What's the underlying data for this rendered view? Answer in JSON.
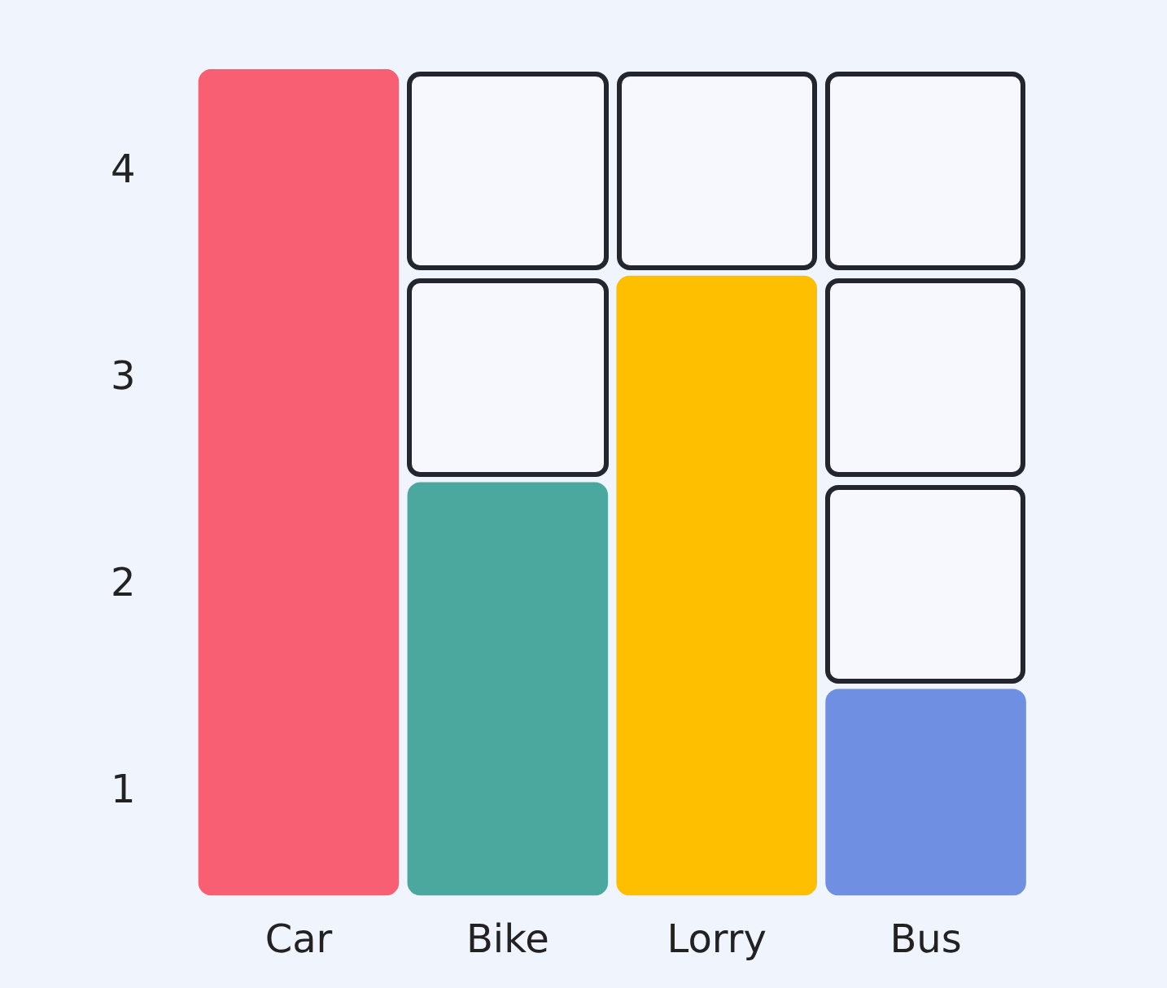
{
  "chart_data": {
    "type": "bar",
    "categories": [
      "Car",
      "Bike",
      "Lorry",
      "Bus"
    ],
    "values": [
      4,
      2,
      3,
      1
    ],
    "colors": [
      "#f95f72",
      "#4aa89f",
      "#fdbf00",
      "#6f8fe2"
    ],
    "ylim": [
      0,
      4
    ],
    "yticks": [
      {
        "value": 0.5,
        "label": "1"
      },
      {
        "value": 1.5,
        "label": "2"
      },
      {
        "value": 2.5,
        "label": "3"
      },
      {
        "value": 3.5,
        "label": "4"
      }
    ]
  }
}
